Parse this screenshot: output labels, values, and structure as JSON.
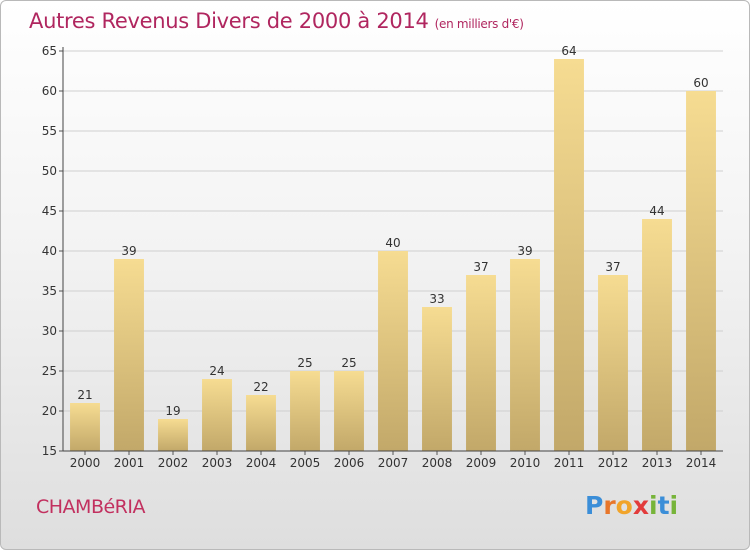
{
  "header": {
    "title": "Autres Revenus Divers de 2000 à 2014",
    "unit": "(en milliers d'€)"
  },
  "footer": {
    "city": "CHAMBéRIA",
    "logo": {
      "letters": [
        "P",
        "r",
        "o",
        "x",
        "i",
        "t",
        "i"
      ],
      "colors": [
        "#3b8ed8",
        "#e8762a",
        "#f1a42a",
        "#e23b3b",
        "#77b43a",
        "#3b8ed8",
        "#77b43a"
      ]
    }
  },
  "chart_data": {
    "type": "bar",
    "title": "Autres Revenus Divers de 2000 à 2014",
    "subtitle": "(en milliers d'€)",
    "categories": [
      "2000",
      "2001",
      "2002",
      "2003",
      "2004",
      "2005",
      "2006",
      "2007",
      "2008",
      "2009",
      "2010",
      "2011",
      "2012",
      "2013",
      "2014"
    ],
    "values": [
      21,
      39,
      19,
      24,
      22,
      25,
      25,
      40,
      33,
      37,
      39,
      64,
      37,
      44,
      60
    ],
    "ylim": [
      15,
      65
    ],
    "yticks": [
      15,
      20,
      25,
      30,
      35,
      40,
      45,
      50,
      55,
      60,
      65
    ],
    "grid": true,
    "colors": {
      "bar_top": "#f6dc92",
      "bar_bottom": "#c2a869",
      "grid": "#cfcfcf",
      "axis_text": "#333333"
    }
  }
}
